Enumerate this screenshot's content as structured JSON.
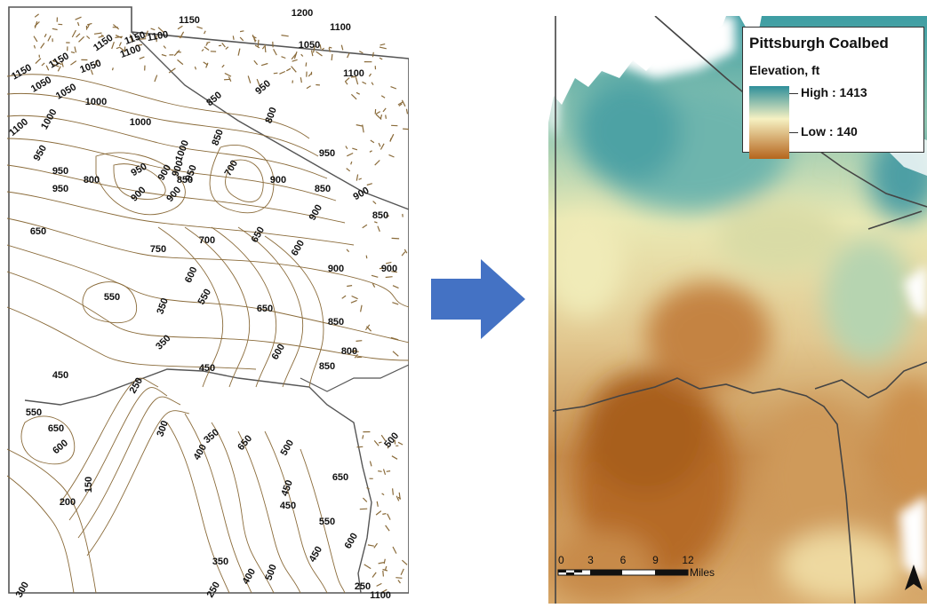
{
  "contour_map": {
    "labels": [
      "1200",
      "1150",
      "1100",
      "1150",
      "1100",
      "1050",
      "1150",
      "1050",
      "1100",
      "1150",
      "1150",
      "1100",
      "1050",
      "1000",
      "1100",
      "1050",
      "1000",
      "950",
      "950",
      "1000",
      "900",
      "850",
      "950",
      "800",
      "850",
      "950",
      "950",
      "900",
      "900",
      "850",
      "1000",
      "900",
      "950",
      "700",
      "900",
      "950",
      "800",
      "850",
      "900",
      "900",
      "850",
      "650",
      "750",
      "700",
      "650",
      "600",
      "550",
      "600",
      "900",
      "550",
      "350",
      "650",
      "850",
      "600",
      "900",
      "350",
      "450",
      "450",
      "800",
      "850",
      "550",
      "250",
      "650",
      "600",
      "300",
      "350",
      "650",
      "500",
      "450",
      "650",
      "500",
      "200",
      "150",
      "400",
      "450",
      "550",
      "600",
      "350",
      "250",
      "500",
      "400",
      "250",
      "450",
      "300",
      "1100"
    ]
  },
  "legend": {
    "title": "Pittsburgh Coalbed",
    "subtitle": "Elevation, ft",
    "high_label": "High : 1413",
    "low_label": "Low : 140"
  },
  "scale_bar": {
    "ticks": [
      "0",
      "3",
      "6",
      "9",
      "12"
    ],
    "unit": "Miles"
  },
  "colors": {
    "high": "#2e8f9a",
    "mid": "#f6f1c2",
    "low": "#b5651d",
    "contour": "#8a6b3a",
    "arrow": "#4472c4"
  }
}
